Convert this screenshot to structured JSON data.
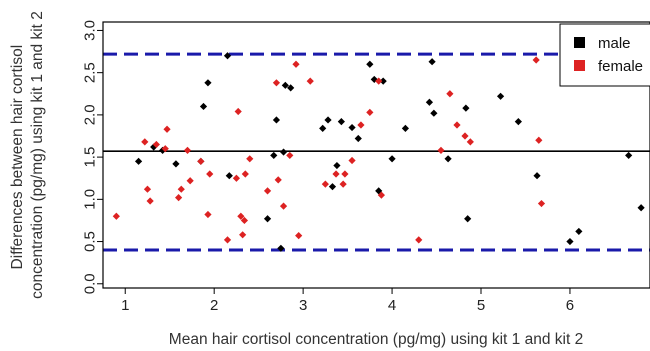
{
  "chart_data": {
    "type": "scatter",
    "title": "",
    "xlabel": "Mean hair cortisol concentration (pg/mg) using kit 1 and kit 2",
    "ylabel_lines": [
      "Differences between hair cortisol",
      "concentration (pg/mg) using kit 1 and kit 2"
    ],
    "xlim": [
      0.75,
      6.9
    ],
    "ylim": [
      -0.05,
      3.1
    ],
    "x_ticks": [
      1,
      2,
      3,
      4,
      5,
      6
    ],
    "y_ticks": [
      0.0,
      0.5,
      1.0,
      1.5,
      2.0,
      2.5,
      3.0
    ],
    "y_tick_labels": [
      "0.0",
      "0.5",
      "1.0",
      "1.5",
      "2.0",
      "2.5",
      "3.0"
    ],
    "grid": false,
    "legend_position": "top-right",
    "reference_lines": [
      {
        "kind": "mean",
        "y": 1.57,
        "color": "#000000",
        "style": "solid"
      },
      {
        "kind": "upper-limit",
        "y": 2.72,
        "color": "#1a1aaa",
        "style": "dashed"
      },
      {
        "kind": "lower-limit",
        "y": 0.4,
        "color": "#1a1aaa",
        "style": "dashed"
      }
    ],
    "series": [
      {
        "name": "male",
        "color": "#000000",
        "points": [
          {
            "x": 1.15,
            "y": 1.45
          },
          {
            "x": 1.32,
            "y": 1.62
          },
          {
            "x": 1.42,
            "y": 1.58
          },
          {
            "x": 1.57,
            "y": 1.42
          },
          {
            "x": 1.85,
            "y": 1.45
          },
          {
            "x": 1.88,
            "y": 2.1
          },
          {
            "x": 1.93,
            "y": 2.38
          },
          {
            "x": 2.15,
            "y": 2.7
          },
          {
            "x": 2.17,
            "y": 1.28
          },
          {
            "x": 2.6,
            "y": 0.77
          },
          {
            "x": 2.67,
            "y": 1.52
          },
          {
            "x": 2.7,
            "y": 1.94
          },
          {
            "x": 2.75,
            "y": 0.42
          },
          {
            "x": 2.78,
            "y": 1.56
          },
          {
            "x": 2.8,
            "y": 2.35
          },
          {
            "x": 2.86,
            "y": 2.32
          },
          {
            "x": 3.22,
            "y": 1.84
          },
          {
            "x": 3.28,
            "y": 1.94
          },
          {
            "x": 3.33,
            "y": 1.15
          },
          {
            "x": 3.38,
            "y": 1.4
          },
          {
            "x": 3.43,
            "y": 1.92
          },
          {
            "x": 3.55,
            "y": 1.85
          },
          {
            "x": 3.62,
            "y": 1.72
          },
          {
            "x": 3.75,
            "y": 2.6
          },
          {
            "x": 3.8,
            "y": 2.42
          },
          {
            "x": 3.85,
            "y": 1.1
          },
          {
            "x": 3.9,
            "y": 2.4
          },
          {
            "x": 4.0,
            "y": 1.48
          },
          {
            "x": 4.15,
            "y": 1.84
          },
          {
            "x": 4.42,
            "y": 2.15
          },
          {
            "x": 4.45,
            "y": 2.63
          },
          {
            "x": 4.47,
            "y": 2.02
          },
          {
            "x": 4.63,
            "y": 1.48
          },
          {
            "x": 4.83,
            "y": 2.08
          },
          {
            "x": 4.85,
            "y": 0.77
          },
          {
            "x": 5.22,
            "y": 2.22
          },
          {
            "x": 5.42,
            "y": 1.92
          },
          {
            "x": 5.63,
            "y": 1.28
          },
          {
            "x": 6.0,
            "y": 0.5
          },
          {
            "x": 6.1,
            "y": 0.62
          },
          {
            "x": 6.66,
            "y": 1.52
          },
          {
            "x": 6.8,
            "y": 0.9
          }
        ]
      },
      {
        "name": "female",
        "color": "#dd2222",
        "points": [
          {
            "x": 0.9,
            "y": 0.8
          },
          {
            "x": 1.22,
            "y": 1.68
          },
          {
            "x": 1.25,
            "y": 1.12
          },
          {
            "x": 1.28,
            "y": 0.98
          },
          {
            "x": 1.35,
            "y": 1.65
          },
          {
            "x": 1.45,
            "y": 1.6
          },
          {
            "x": 1.47,
            "y": 1.83
          },
          {
            "x": 1.6,
            "y": 1.02
          },
          {
            "x": 1.63,
            "y": 1.12
          },
          {
            "x": 1.7,
            "y": 1.58
          },
          {
            "x": 1.73,
            "y": 1.22
          },
          {
            "x": 1.85,
            "y": 1.45
          },
          {
            "x": 1.93,
            "y": 0.82
          },
          {
            "x": 1.95,
            "y": 1.3
          },
          {
            "x": 2.15,
            "y": 0.52
          },
          {
            "x": 2.25,
            "y": 1.25
          },
          {
            "x": 2.27,
            "y": 2.04
          },
          {
            "x": 2.3,
            "y": 0.8
          },
          {
            "x": 2.32,
            "y": 0.58
          },
          {
            "x": 2.34,
            "y": 0.75
          },
          {
            "x": 2.35,
            "y": 1.3
          },
          {
            "x": 2.4,
            "y": 1.48
          },
          {
            "x": 2.6,
            "y": 1.1
          },
          {
            "x": 2.7,
            "y": 2.38
          },
          {
            "x": 2.72,
            "y": 1.23
          },
          {
            "x": 2.78,
            "y": 0.92
          },
          {
            "x": 2.85,
            "y": 1.52
          },
          {
            "x": 2.92,
            "y": 2.6
          },
          {
            "x": 2.95,
            "y": 0.57
          },
          {
            "x": 3.08,
            "y": 2.4
          },
          {
            "x": 3.25,
            "y": 1.18
          },
          {
            "x": 3.37,
            "y": 1.3
          },
          {
            "x": 3.45,
            "y": 1.18
          },
          {
            "x": 3.47,
            "y": 1.3
          },
          {
            "x": 3.55,
            "y": 1.46
          },
          {
            "x": 3.65,
            "y": 1.88
          },
          {
            "x": 3.75,
            "y": 2.03
          },
          {
            "x": 3.85,
            "y": 2.4
          },
          {
            "x": 3.88,
            "y": 1.05
          },
          {
            "x": 4.3,
            "y": 0.52
          },
          {
            "x": 4.55,
            "y": 1.58
          },
          {
            "x": 4.65,
            "y": 2.25
          },
          {
            "x": 4.73,
            "y": 1.88
          },
          {
            "x": 4.82,
            "y": 1.75
          },
          {
            "x": 4.88,
            "y": 1.68
          },
          {
            "x": 5.62,
            "y": 2.65
          },
          {
            "x": 5.65,
            "y": 1.7
          },
          {
            "x": 5.68,
            "y": 0.95
          }
        ]
      }
    ]
  }
}
